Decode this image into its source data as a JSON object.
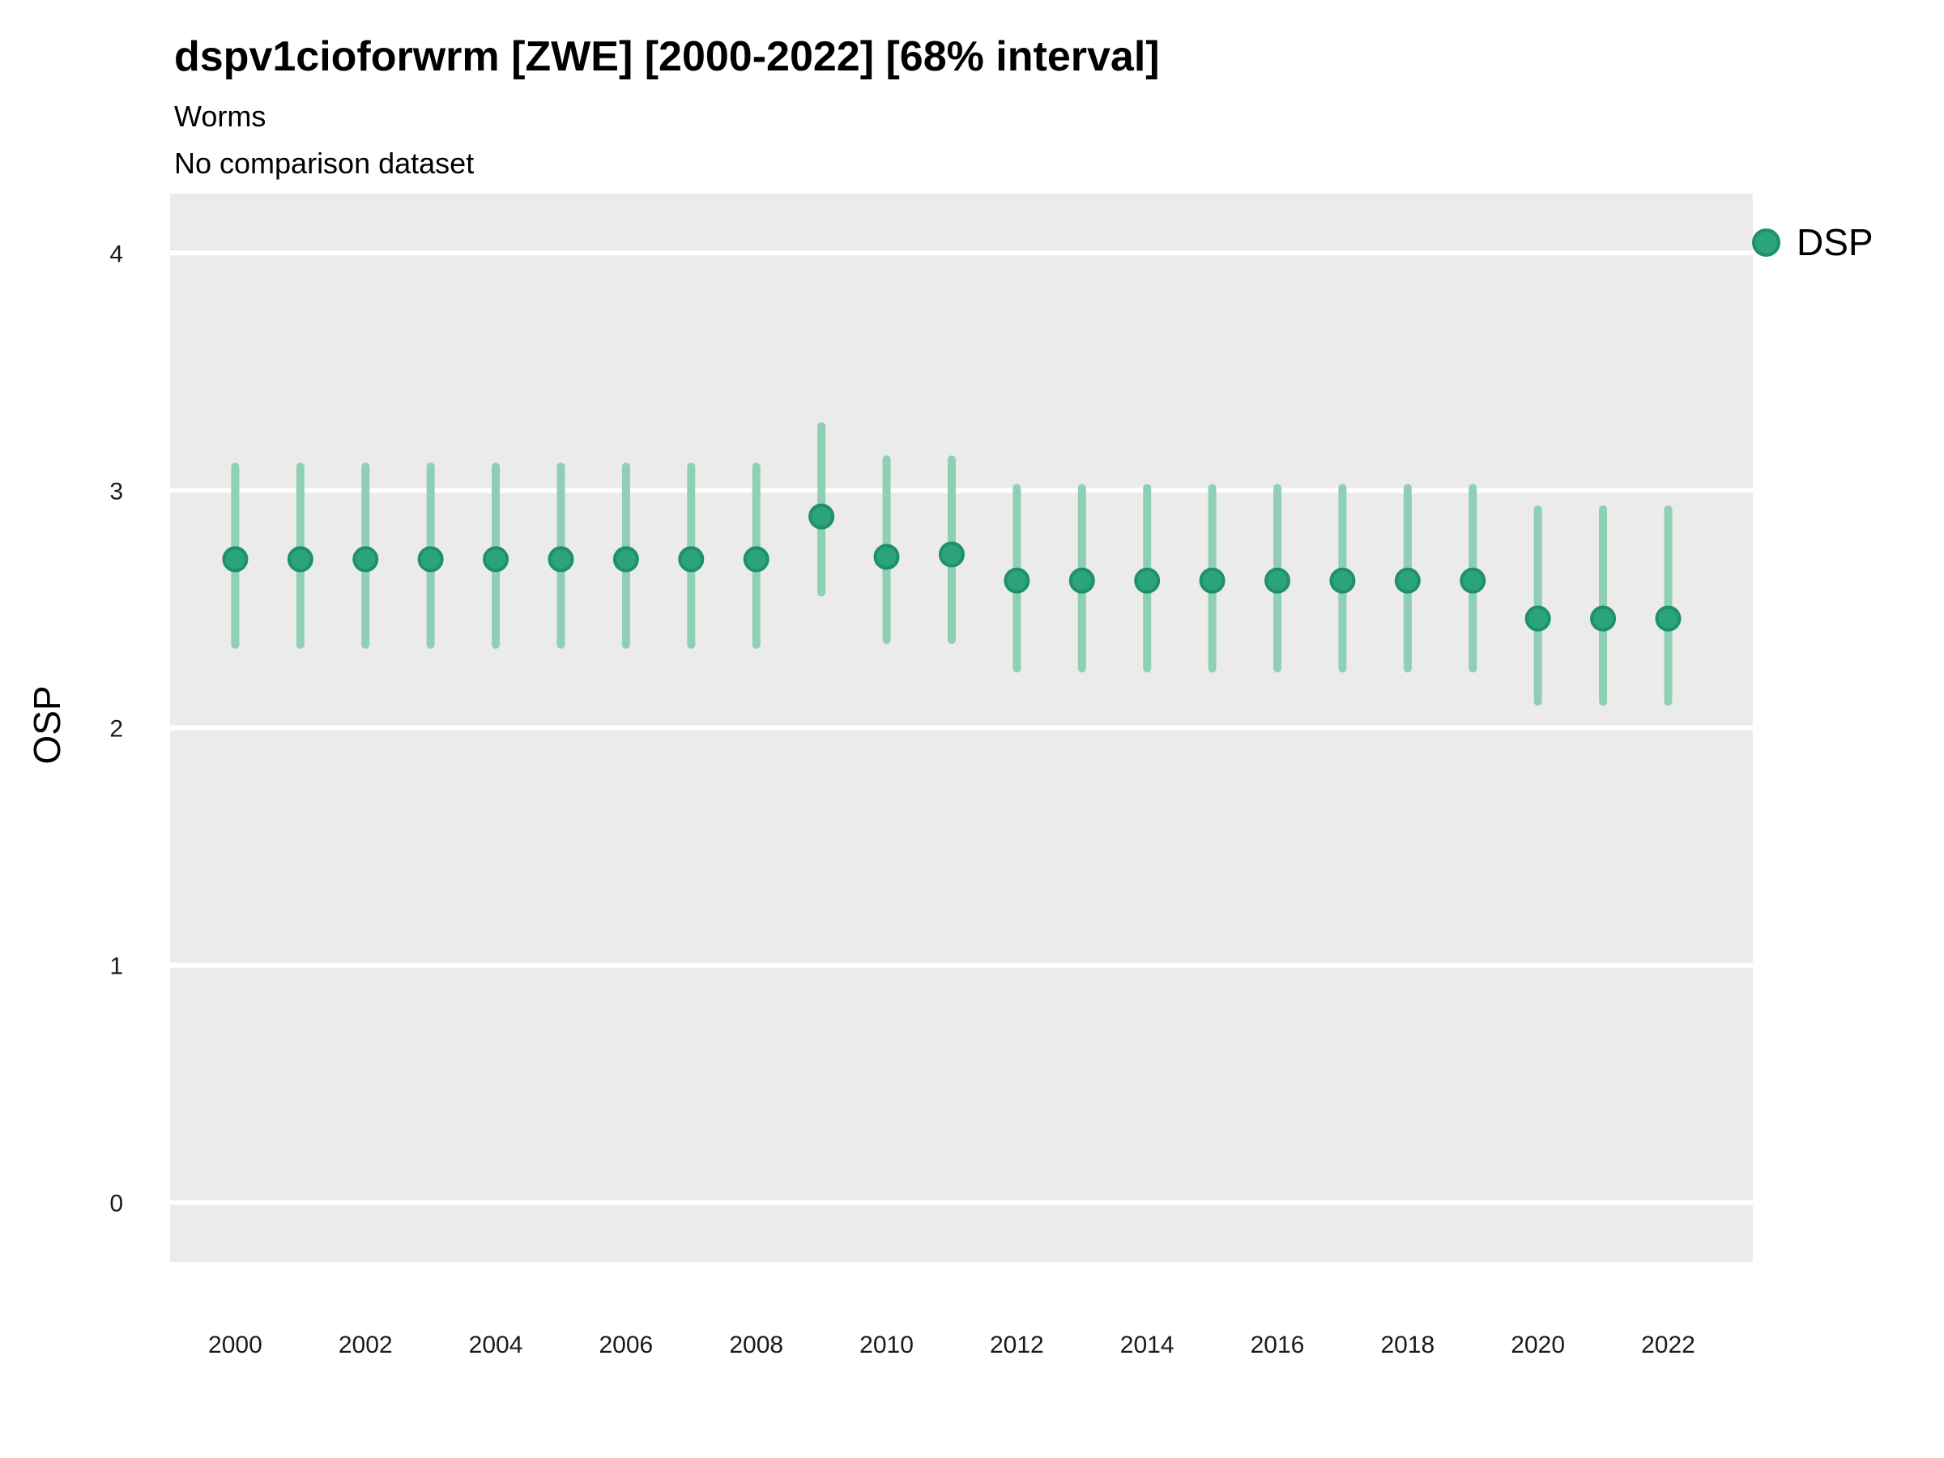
{
  "header": {
    "title": "dspv1cioforwrm [ZWE] [2000-2022] [68% interval]",
    "subtitle": "Worms",
    "note": "No comparison dataset"
  },
  "legend": {
    "position": "right-top",
    "items": [
      {
        "label": "DSP",
        "color": "#2BA47B",
        "ring_color": "#1F9166"
      }
    ]
  },
  "colors": {
    "panel_background": "#EBEBEB",
    "gridline": "#FFFFFF",
    "point_fill": "#2BA47B",
    "point_ring": "#1F9166",
    "interval_line": "#8FCFB4",
    "text": "#000000",
    "tick_text": "#1a1a1a",
    "page_background": "#FFFFFF"
  },
  "chart_data": {
    "type": "scatter",
    "subtype": "pointrange",
    "title": "dspv1cioforwrm [ZWE] [2000-2022] [68% interval]",
    "subtitle": "Worms",
    "note": "No comparison dataset",
    "interval_label": "68% interval",
    "xlabel": "",
    "ylabel": "OSP",
    "x": [
      2000,
      2001,
      2002,
      2003,
      2004,
      2005,
      2006,
      2007,
      2008,
      2009,
      2010,
      2011,
      2012,
      2013,
      2014,
      2015,
      2016,
      2017,
      2018,
      2019,
      2020,
      2021,
      2022
    ],
    "series": [
      {
        "name": "DSP",
        "mid": [
          2.71,
          2.71,
          2.71,
          2.71,
          2.71,
          2.71,
          2.71,
          2.71,
          2.71,
          2.89,
          2.72,
          2.73,
          2.62,
          2.62,
          2.62,
          2.62,
          2.62,
          2.62,
          2.62,
          2.62,
          2.46,
          2.46,
          2.46
        ],
        "lo": [
          2.35,
          2.35,
          2.35,
          2.35,
          2.35,
          2.35,
          2.35,
          2.35,
          2.35,
          2.57,
          2.37,
          2.37,
          2.25,
          2.25,
          2.25,
          2.25,
          2.25,
          2.25,
          2.25,
          2.25,
          2.11,
          2.11,
          2.11
        ],
        "hi": [
          3.1,
          3.1,
          3.1,
          3.1,
          3.1,
          3.1,
          3.1,
          3.1,
          3.1,
          3.27,
          3.13,
          3.13,
          3.01,
          3.01,
          3.01,
          3.01,
          3.01,
          3.01,
          3.01,
          3.01,
          2.92,
          2.92,
          2.92
        ]
      }
    ],
    "xlim": [
      1999.0,
      2023.3
    ],
    "ylim": [
      -0.25,
      4.25
    ],
    "yticks": [
      0,
      1,
      2,
      3,
      4
    ],
    "xticks": [
      2000,
      2002,
      2004,
      2006,
      2008,
      2010,
      2012,
      2014,
      2016,
      2018,
      2020,
      2022
    ],
    "grid": "horizontal-major-only",
    "legend_position": "right-top"
  }
}
